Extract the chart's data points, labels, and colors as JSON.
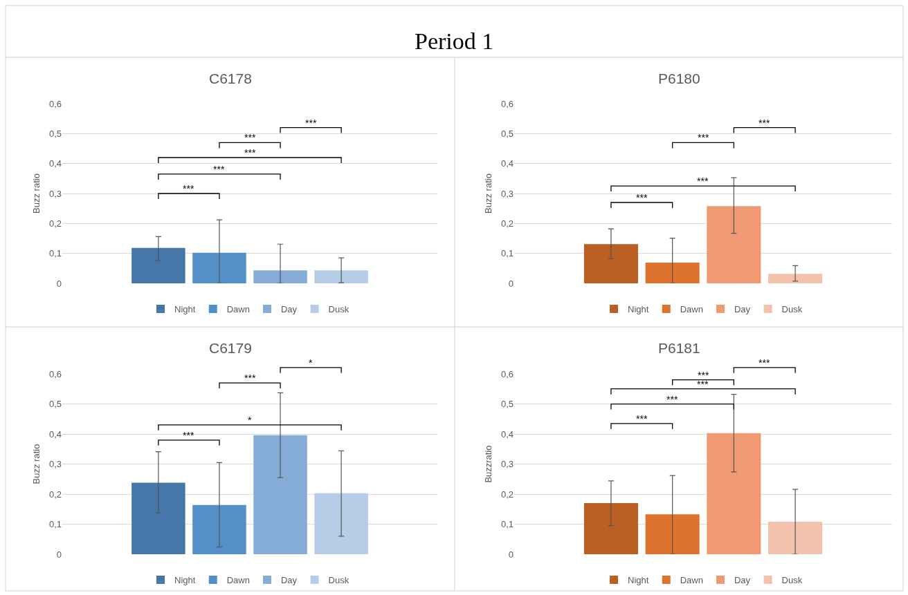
{
  "chart_data": [
    {
      "type": "other",
      "title": "Period 1"
    },
    {
      "type": "bar",
      "title": "C6178",
      "ylabel": "Buzz ratio",
      "categories": [
        null
      ],
      "ylim": [
        0,
        0.6
      ],
      "yticks": [
        0,
        {
          "value": 0.1,
          "label": "0,1"
        },
        {
          "value": 0.2,
          "label": "0,2"
        },
        {
          "value": 0.3,
          "label": "0,3"
        },
        {
          "value": 0.4,
          "label": "0,4"
        },
        {
          "value": 0.5,
          "label": "0,5"
        },
        {
          "value": 0.6,
          "label": "0,6"
        }
      ],
      "grid": "y",
      "legend": "bottom",
      "series": [
        {
          "name": "Night",
          "color": "#4677a8",
          "values": [
            0.118
          ],
          "errors": [
            [
              0.076,
              0.156
            ]
          ]
        },
        {
          "name": "Dawn",
          "color": "#5390c8",
          "values": [
            0.102
          ],
          "errors": [
            [
              0,
              0.212
            ]
          ]
        },
        {
          "name": "Day",
          "color": "#85acd9",
          "values": [
            0.043
          ],
          "errors": [
            [
              0,
              0.131
            ]
          ]
        },
        {
          "name": "Dusk",
          "color": "#b7cce6",
          "values": [
            0.043
          ],
          "errors": [
            [
              0.002,
              0.085
            ]
          ]
        }
      ],
      "annotations": [
        "***",
        "***",
        "***",
        "***",
        "***"
      ]
    },
    {
      "type": "bar",
      "title": "P6180",
      "ylabel": "Buzz ratio",
      "categories": [
        null
      ],
      "ylim": [
        0,
        0.6
      ],
      "yticks": [
        0,
        {
          "value": 0.1,
          "label": "0,1"
        },
        {
          "value": 0.2,
          "label": "0,2"
        },
        {
          "value": 0.3,
          "label": "0,3"
        },
        {
          "value": 0.4,
          "label": "0,4"
        },
        {
          "value": 0.5,
          "label": "0,5"
        },
        {
          "value": 0.6,
          "label": "0,6"
        }
      ],
      "grid": "y",
      "legend": "bottom",
      "series": [
        {
          "name": "Night",
          "color": "#b95f23",
          "values": [
            0.131
          ],
          "errors": [
            [
              0.083,
              0.182
            ]
          ]
        },
        {
          "name": "Dawn",
          "color": "#dd732d",
          "values": [
            0.069
          ],
          "errors": [
            [
              0,
              0.151
            ]
          ]
        },
        {
          "name": "Day",
          "color": "#ef9a72",
          "values": [
            0.258
          ],
          "errors": [
            [
              0.167,
              0.353
            ]
          ]
        },
        {
          "name": "Dusk",
          "color": "#f4c1ad",
          "values": [
            0.032
          ],
          "errors": [
            [
              0.007,
              0.059
            ]
          ]
        }
      ],
      "annotations": [
        "***",
        "***",
        "***",
        "***"
      ]
    },
    {
      "type": "bar",
      "title": "C6179",
      "ylabel": "Buzz ratio",
      "categories": [
        null
      ],
      "ylim": [
        0,
        0.6
      ],
      "yticks": [
        0,
        {
          "value": 0.1,
          "label": "0,1"
        },
        {
          "value": 0.2,
          "label": "0,2"
        },
        {
          "value": 0.3,
          "label": "0,3"
        },
        {
          "value": 0.4,
          "label": "0,4"
        },
        {
          "value": 0.5,
          "label": "0,5"
        },
        {
          "value": 0.6,
          "label": "0,6"
        }
      ],
      "grid": "y",
      "legend": "bottom",
      "series": [
        {
          "name": "Night",
          "color": "#4677a8",
          "values": [
            0.238
          ],
          "errors": [
            [
              0.138,
              0.341
            ]
          ]
        },
        {
          "name": "Dawn",
          "color": "#5390c8",
          "values": [
            0.164
          ],
          "errors": [
            [
              0.024,
              0.305
            ]
          ]
        },
        {
          "name": "Day",
          "color": "#85acd9",
          "values": [
            0.396
          ],
          "errors": [
            [
              0.255,
              0.537
            ]
          ]
        },
        {
          "name": "Dusk",
          "color": "#b7cce6",
          "values": [
            0.203
          ],
          "errors": [
            [
              0.06,
              0.344
            ]
          ]
        }
      ],
      "annotations": [
        "*",
        "***",
        "*",
        "***"
      ]
    },
    {
      "type": "bar",
      "title": "P6181",
      "ylabel": "Buzzratio",
      "categories": [
        null
      ],
      "ylim": [
        0,
        0.6
      ],
      "yticks": [
        0,
        {
          "value": 0.1,
          "label": "0,1"
        },
        {
          "value": 0.2,
          "label": "0,2"
        },
        {
          "value": 0.3,
          "label": "0,3"
        },
        {
          "value": 0.4,
          "label": "0,4"
        },
        {
          "value": 0.5,
          "label": "0,5"
        },
        {
          "value": 0.6,
          "label": "0,6"
        }
      ],
      "grid": "y",
      "legend": "bottom",
      "series": [
        {
          "name": "Night",
          "color": "#b95f23",
          "values": [
            0.17
          ],
          "errors": [
            [
              0.095,
              0.244
            ]
          ]
        },
        {
          "name": "Dawn",
          "color": "#dd732d",
          "values": [
            0.133
          ],
          "errors": [
            [
              0,
              0.262
            ]
          ]
        },
        {
          "name": "Day",
          "color": "#ef9a72",
          "values": [
            0.403
          ],
          "errors": [
            [
              0.274,
              0.532
            ]
          ]
        },
        {
          "name": "Dusk",
          "color": "#f4c1ad",
          "values": [
            0.108
          ],
          "errors": [
            [
              0,
              0.216
            ]
          ]
        }
      ],
      "annotations": [
        "***",
        "***",
        "***",
        "***",
        "***"
      ]
    }
  ]
}
